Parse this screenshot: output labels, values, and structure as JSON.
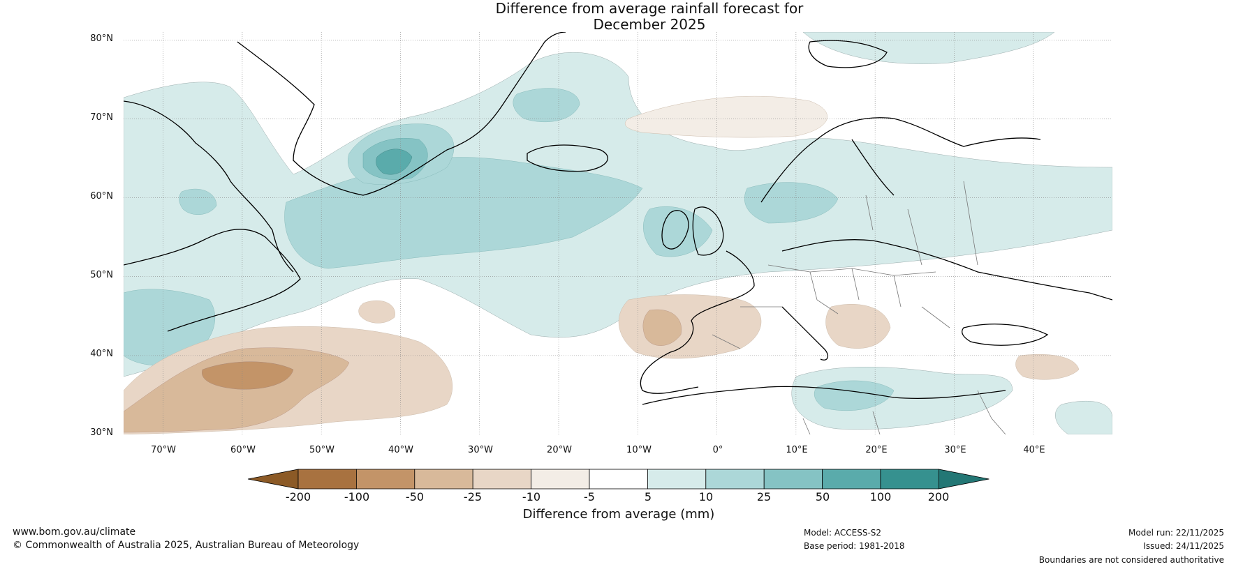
{
  "title": {
    "line1": "Difference from average rainfall forecast for",
    "line2": "December 2025"
  },
  "map": {
    "lat_labels": [
      "80°N",
      "70°N",
      "60°N",
      "50°N",
      "40°N",
      "30°N"
    ],
    "lon_labels": [
      "70°W",
      "60°W",
      "50°W",
      "40°W",
      "30°W",
      "20°W",
      "10°W",
      "0°",
      "10°E",
      "20°E",
      "30°E",
      "40°E"
    ],
    "lat_range": [
      30,
      81
    ],
    "lon_range": [
      -75,
      50
    ]
  },
  "colorbar": {
    "ticks": [
      "-200",
      "-100",
      "-50",
      "-25",
      "-10",
      "-5",
      "5",
      "10",
      "25",
      "50",
      "100",
      "200"
    ],
    "colors": [
      "#8c5a26",
      "#a87240",
      "#c39468",
      "#d8b99a",
      "#e8d6c6",
      "#f3ede6",
      "#ffffff",
      "#d6ebea",
      "#acd7d8",
      "#85c3c4",
      "#5aabab",
      "#36918f",
      "#237775"
    ],
    "title": "Difference from average (mm)"
  },
  "footer": {
    "website": "www.bom.gov.au/climate",
    "copyright": "© Commonwealth of Australia 2025, Australian Bureau of Meteorology",
    "model": "Model: ACCESS-S2",
    "base_period": "Base period: 1981-2018",
    "model_run": "Model run: 22/11/2025",
    "issued": "Issued: 24/11/2025",
    "disclaimer": "Boundaries are not considered authoritative"
  },
  "icons": {
    "coastline": "coastline-icon",
    "borders": "country-border-icon"
  }
}
